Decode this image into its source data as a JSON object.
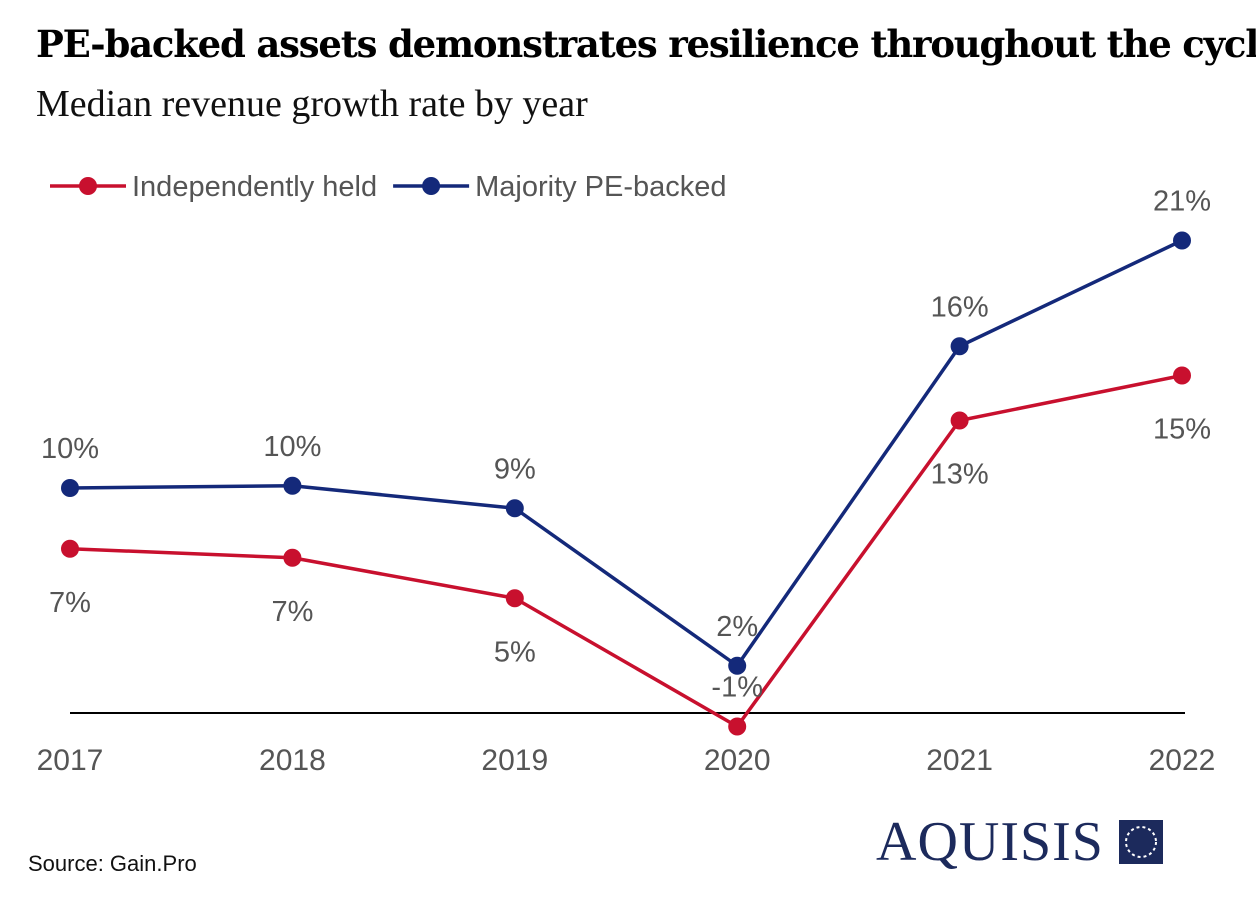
{
  "title": "PE-backed assets demonstrates resilience throughout the cycle",
  "subtitle": "Median revenue growth rate by year",
  "source": "Source: Gain.Pro",
  "logo_text": "AQUISIS",
  "colors": {
    "independent": "#c8102e",
    "pe": "#14297a",
    "axis": "#000000",
    "text": "#555555"
  },
  "chart_data": {
    "type": "line",
    "title": "Median revenue growth rate by year",
    "xlabel": "",
    "ylabel": "",
    "categories": [
      "2017",
      "2018",
      "2019",
      "2020",
      "2021",
      "2022"
    ],
    "ylim": [
      0,
      22
    ],
    "grid": false,
    "legend": "top-left",
    "series": [
      {
        "name": "Independently held",
        "color": "#c8102e",
        "values": [
          7.3,
          6.9,
          5.1,
          -0.6,
          13.0,
          15.0
        ],
        "labels": [
          "7%",
          "7%",
          "5%",
          "-1%",
          "13%",
          "15%"
        ],
        "label_position": [
          "below",
          "below",
          "below",
          "above",
          "below",
          "below"
        ]
      },
      {
        "name": "Majority PE-backed",
        "color": "#14297a",
        "values": [
          10.0,
          10.1,
          9.1,
          2.1,
          16.3,
          21.0
        ],
        "labels": [
          "10%",
          "10%",
          "9%",
          "2%",
          "16%",
          "21%"
        ],
        "label_position": [
          "above",
          "above",
          "above",
          "above",
          "above",
          "above"
        ]
      }
    ]
  }
}
